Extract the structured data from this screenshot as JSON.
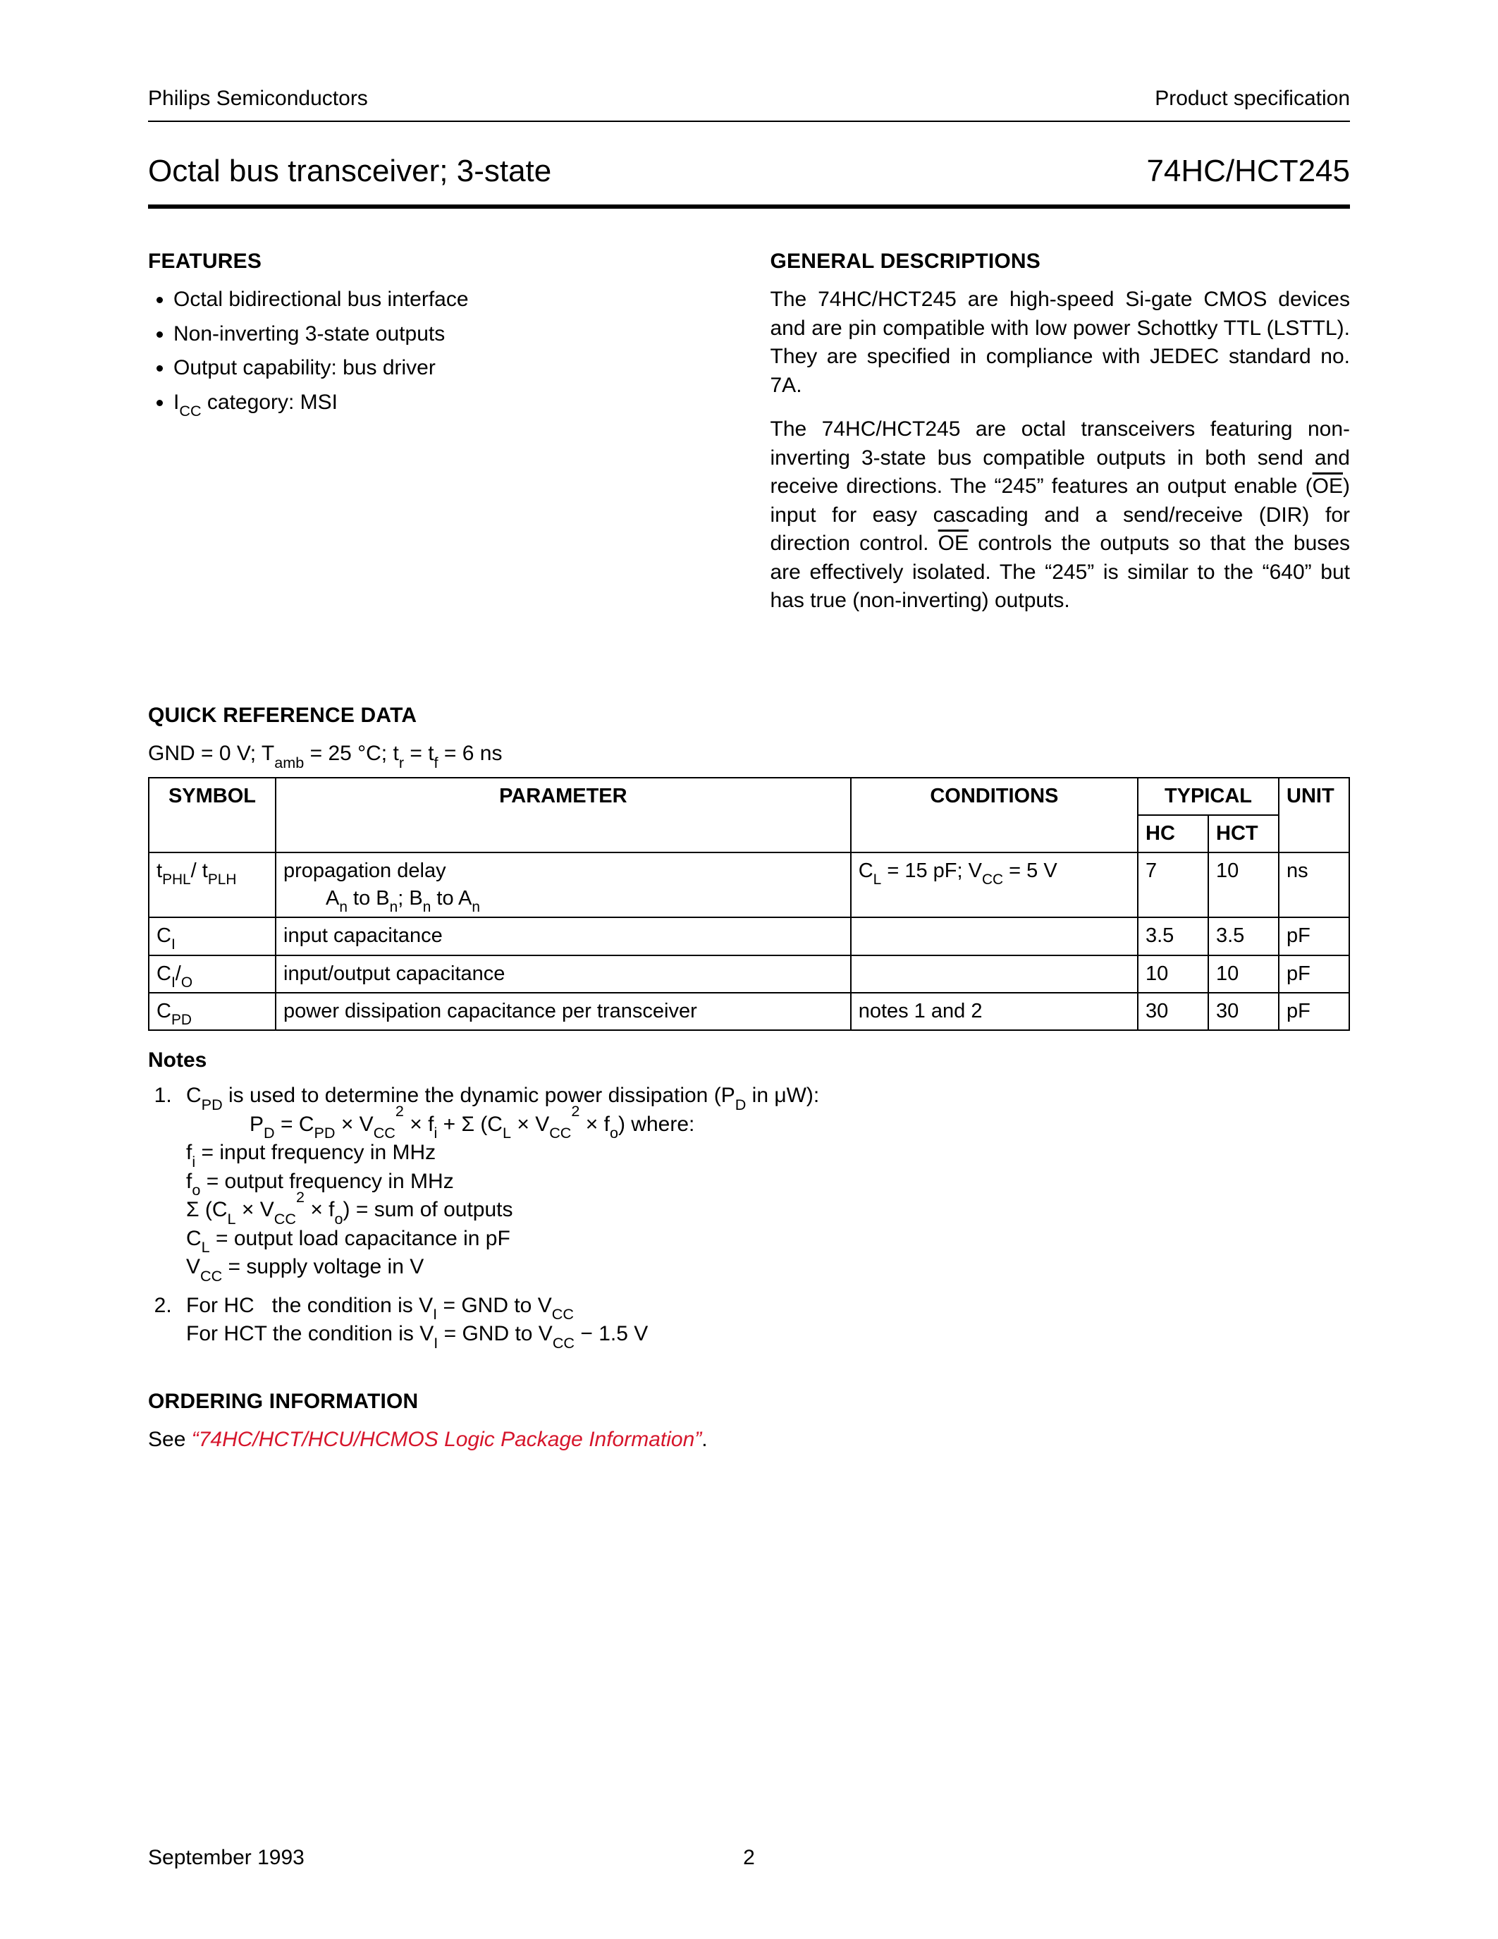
{
  "header": {
    "company": "Philips Semiconductors",
    "doc_type": "Product specification"
  },
  "title": {
    "left": "Octal bus transceiver; 3-state",
    "right": "74HC/HCT245"
  },
  "features": {
    "heading": "FEATURES",
    "items": [
      "Octal bidirectional bus interface",
      "Non-inverting 3-state outputs",
      "Output capability: bus driver"
    ],
    "icc_prefix": "I",
    "icc_sub": "CC",
    "icc_suffix": " category: MSI"
  },
  "general": {
    "heading": "GENERAL DESCRIPTIONS",
    "p1": "The 74HC/HCT245 are high-speed Si-gate CMOS devices and are pin compatible with low power Schottky TTL (LSTTL). They are specified in compliance with JEDEC standard no. 7A.",
    "p2a": "The 74HC/HCT245 are octal transceivers featuring non-inverting 3-state bus compatible outputs in both send and receive directions. The “245” features an output enable (",
    "oe": "OE",
    "p2b": ") input for easy cascading and a send/receive (DIR) for direction control. ",
    "p2c": " controls the outputs so that the buses are effectively isolated. The “245” is similar to the “640” but has true (non-inverting) outputs."
  },
  "qrd": {
    "heading": "QUICK REFERENCE DATA",
    "cond_prefix": "GND = 0 V; T",
    "cond_sub1": "amb",
    "cond_mid": " = 25 °C; t",
    "cond_sub2": "r",
    "cond_mid2": " = t",
    "cond_sub3": "f",
    "cond_end": " = 6 ns",
    "headers": {
      "symbol": "SYMBOL",
      "parameter": "PARAMETER",
      "conditions": "CONDITIONS",
      "typical": "TYPICAL",
      "hc": "HC",
      "hct": "HCT",
      "unit": "UNIT"
    }
  },
  "qrd_rows": {
    "r1": {
      "sym_a": "t",
      "sym_a_sub": "PHL",
      "sym_sep": "/ t",
      "sym_b_sub": "PLH",
      "param_main": "propagation delay",
      "param_sub_a": "A",
      "param_sub_a_sub": "n",
      "param_sub_to": " to B",
      "param_sub_b_sub": "n",
      "param_sub_sep": "; B",
      "param_sub_c_sub": "n",
      "param_sub_to2": " to A",
      "param_sub_d_sub": "n",
      "cond_a": "C",
      "cond_a_sub": "L",
      "cond_mid": " = 15 pF; V",
      "cond_b_sub": "CC",
      "cond_end": " = 5 V",
      "hc": "7",
      "hct": "10",
      "unit": "ns"
    },
    "r2": {
      "sym": "C",
      "sym_sub": "I",
      "param": "input capacitance",
      "cond": "",
      "hc": "3.5",
      "hct": "3.5",
      "unit": "pF"
    },
    "r3": {
      "sym": "C",
      "sym_sub": "I",
      "sym_sep": "/",
      "sym2_sub": "O",
      "param": "input/output capacitance",
      "cond": "",
      "hc": "10",
      "hct": "10",
      "unit": "pF"
    },
    "r4": {
      "sym": "C",
      "sym_sub": "PD",
      "param": "power dissipation capacitance per transceiver",
      "cond": "notes 1 and 2",
      "hc": "30",
      "hct": "30",
      "unit": "pF"
    }
  },
  "notes": {
    "heading": "Notes",
    "n1_intro_a": "C",
    "n1_intro_a_sub": "PD",
    "n1_intro_b": " is used to determine the dynamic power dissipation (P",
    "n1_intro_b_sub": "D",
    "n1_intro_c": " in μW):",
    "eq_a": "P",
    "eq_a_sub": "D",
    "eq_b": " = C",
    "eq_b_sub": "PD",
    "eq_c": " × V",
    "eq_c_sub": "CC",
    "eq_c_sup": "2",
    "eq_d": " × f",
    "eq_d_sub": "i",
    "eq_e": " + Σ (C",
    "eq_e_sub": "L",
    "eq_f": " × V",
    "eq_f_sub": "CC",
    "eq_f_sup": "2",
    "eq_g": "  × f",
    "eq_g_sub": "o",
    "eq_h": ") where:",
    "fi": "f",
    "fi_sub": "i",
    "fi_txt": "  = input frequency in MHz",
    "fo": "f",
    "fo_sub": "o",
    "fo_txt": " = output frequency in MHz",
    "sum_a": "Σ (C",
    "sum_a_sub": "L",
    "sum_b": " × V",
    "sum_b_sub": "CC",
    "sum_b_sup": "2",
    "sum_c": "  × f",
    "sum_c_sub": "o",
    "sum_d": ") = sum of outputs",
    "cl": "C",
    "cl_sub": "L",
    "cl_txt": " = output load capacitance in pF",
    "vcc": "V",
    "vcc_sub": "CC",
    "vcc_txt": " = supply voltage in V",
    "n2_a": "For HC   the condition is V",
    "n2_a_sub": "I",
    "n2_b": " = GND to V",
    "n2_b_sub": "CC",
    "n2_c": "For HCT the condition is V",
    "n2_c_sub": "I",
    "n2_d": " = GND to V",
    "n2_d_sub": "CC",
    "n2_e": " − 1.5 V"
  },
  "ordering": {
    "heading": "ORDERING INFORMATION",
    "see": "See ",
    "link": "“74HC/HCT/HCU/HCMOS Logic Package Information”",
    "period": "."
  },
  "footer": {
    "date": "September 1993",
    "page": "2"
  }
}
